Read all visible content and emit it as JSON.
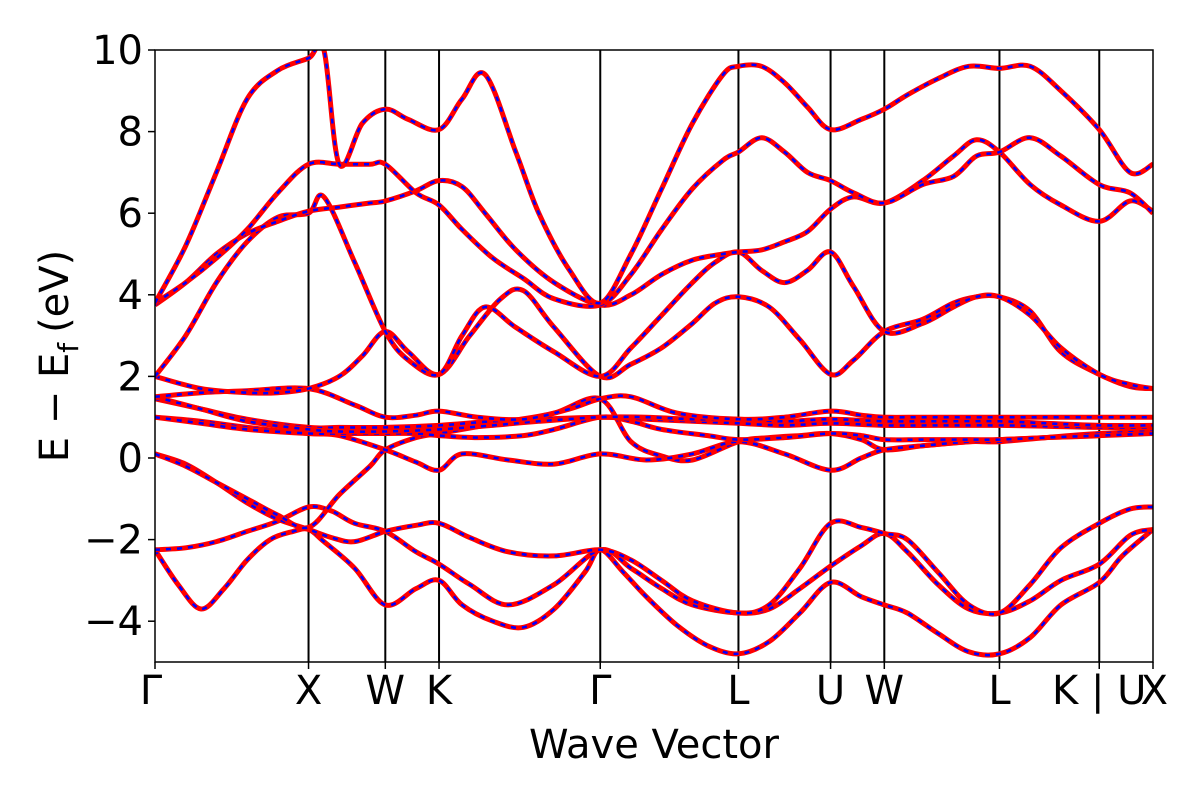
{
  "chart_data": {
    "type": "line",
    "xlabel": "Wave Vector",
    "ylabel": "E − E",
    "ylabel_sub": "f",
    "ylabel_unit": "(eV)",
    "ylim": [
      -5,
      10
    ],
    "yticks": [
      -4,
      -2,
      0,
      2,
      4,
      6,
      8,
      10
    ],
    "ytick_labels": [
      "−4",
      "−2",
      "0",
      "2",
      "4",
      "6",
      "8",
      "10"
    ],
    "xlim": [
      0,
      6.5
    ],
    "kpoints": [
      {
        "label": "Γ",
        "x": 0
      },
      {
        "label": "X",
        "x": 1.0
      },
      {
        "label": "W",
        "x": 1.5
      },
      {
        "label": "K",
        "x": 1.85
      },
      {
        "label": "Γ",
        "x": 2.9
      },
      {
        "label": "L",
        "x": 3.8
      },
      {
        "label": "U",
        "x": 4.4
      },
      {
        "label": "W",
        "x": 4.75
      },
      {
        "label": "L",
        "x": 5.5
      },
      {
        "label": "K | U",
        "x": 6.15
      },
      {
        "label": "X",
        "x": 6.5
      }
    ],
    "series_colors": {
      "series_a": "#ff0000",
      "series_b": "#0000ff"
    },
    "bands": [
      {
        "x": [
          0,
          0.15,
          0.3,
          0.45,
          0.6,
          0.75,
          0.9,
          1.0,
          1.1,
          1.3,
          1.5,
          1.7,
          1.85,
          2.0,
          2.2,
          2.4,
          2.6,
          2.8,
          2.9,
          3.05,
          3.2,
          3.4,
          3.6,
          3.8,
          4.0,
          4.2,
          4.4,
          4.6,
          4.75,
          4.9,
          5.1,
          5.3,
          5.5,
          5.7,
          5.9,
          6.15,
          6.3,
          6.5
        ],
        "y": [
          -2.25,
          -3.1,
          -3.7,
          -3.2,
          -2.5,
          -2.0,
          -1.8,
          -1.75,
          -2.05,
          -2.7,
          -3.6,
          -3.2,
          -3.0,
          -3.6,
          -4.0,
          -4.15,
          -3.7,
          -2.8,
          -2.25,
          -2.8,
          -3.4,
          -4.1,
          -4.6,
          -4.8,
          -4.5,
          -3.8,
          -3.05,
          -3.4,
          -3.6,
          -3.8,
          -4.3,
          -4.75,
          -4.8,
          -4.4,
          -3.6,
          -3.05,
          -2.4,
          -1.75
        ]
      },
      {
        "x": [
          0,
          0.2,
          0.4,
          0.6,
          0.8,
          1.0,
          1.15,
          1.3,
          1.5,
          1.7,
          1.85,
          2.05,
          2.3,
          2.6,
          2.9,
          3.1,
          3.3,
          3.5,
          3.8,
          4.0,
          4.2,
          4.4,
          4.6,
          4.75,
          4.9,
          5.1,
          5.3,
          5.5,
          5.7,
          5.9,
          6.15,
          6.35,
          6.5
        ],
        "y": [
          -2.25,
          -2.2,
          -2.05,
          -1.8,
          -1.55,
          -1.2,
          -1.3,
          -1.6,
          -1.8,
          -2.3,
          -2.6,
          -3.1,
          -3.6,
          -3.1,
          -2.25,
          -2.7,
          -3.2,
          -3.6,
          -3.8,
          -3.7,
          -3.2,
          -2.65,
          -2.15,
          -1.85,
          -2.3,
          -3.1,
          -3.7,
          -3.8,
          -3.5,
          -3.0,
          -2.6,
          -1.9,
          -1.75
        ]
      },
      {
        "x": [
          0,
          0.2,
          0.4,
          0.6,
          0.8,
          1.0,
          1.15,
          1.3,
          1.5,
          1.7,
          1.85,
          2.05,
          2.3,
          2.6,
          2.9,
          3.1,
          3.3,
          3.5,
          3.8,
          4.0,
          4.2,
          4.4,
          4.6,
          4.75,
          4.9,
          5.1,
          5.3,
          5.5,
          5.7,
          5.9,
          6.15,
          6.35,
          6.5
        ],
        "y": [
          0.1,
          -0.15,
          -0.6,
          -1.1,
          -1.5,
          -1.75,
          -1.95,
          -2.05,
          -1.8,
          -1.65,
          -1.6,
          -1.95,
          -2.3,
          -2.4,
          -2.25,
          -2.5,
          -3.0,
          -3.5,
          -3.8,
          -3.6,
          -2.7,
          -1.6,
          -1.7,
          -1.85,
          -2.0,
          -2.8,
          -3.6,
          -3.8,
          -3.1,
          -2.2,
          -1.6,
          -1.25,
          -1.2
        ]
      },
      {
        "x": [
          0,
          0.2,
          0.4,
          0.6,
          0.8,
          1.0,
          1.2,
          1.4,
          1.5,
          1.7,
          1.85,
          2.0,
          2.3,
          2.6,
          2.9,
          3.1,
          3.3,
          3.5,
          3.8,
          4.0,
          4.2,
          4.4,
          4.6,
          4.75,
          5.0,
          5.3,
          5.5,
          5.8,
          6.15,
          6.35,
          6.5
        ],
        "y": [
          0.1,
          -0.2,
          -0.6,
          -1.0,
          -1.4,
          -1.7,
          -0.9,
          -0.2,
          0.2,
          0.5,
          0.6,
          0.7,
          0.9,
          1.1,
          1.45,
          0.4,
          0.05,
          -0.05,
          0.4,
          0.5,
          0.55,
          0.6,
          0.45,
          0.2,
          0.3,
          0.4,
          0.45,
          0.5,
          0.55,
          0.65,
          0.7
        ]
      },
      {
        "x": [
          0,
          0.3,
          0.6,
          1.0,
          1.2,
          1.5,
          1.7,
          1.85,
          2.0,
          2.3,
          2.6,
          2.9,
          3.2,
          3.5,
          3.8,
          4.1,
          4.4,
          4.6,
          4.75,
          5.0,
          5.3,
          5.5,
          5.8,
          6.15,
          6.5
        ],
        "y": [
          1.0,
          0.9,
          0.75,
          0.6,
          0.55,
          0.2,
          -0.1,
          -0.3,
          0.1,
          -0.05,
          -0.15,
          0.1,
          -0.05,
          0.1,
          0.4,
          0.1,
          -0.3,
          0.0,
          0.2,
          0.3,
          0.4,
          0.4,
          0.5,
          0.6,
          0.65
        ]
      },
      {
        "x": [
          0,
          0.3,
          0.6,
          1.0,
          1.2,
          1.5,
          1.7,
          1.85,
          2.1,
          2.4,
          2.6,
          2.9,
          3.1,
          3.3,
          3.6,
          3.8,
          4.1,
          4.4,
          4.6,
          4.75,
          5.0,
          5.3,
          5.5,
          5.8,
          6.15,
          6.5
        ],
        "y": [
          1.0,
          0.85,
          0.7,
          0.6,
          0.6,
          0.6,
          0.6,
          0.55,
          0.5,
          0.55,
          0.7,
          1.0,
          0.9,
          0.7,
          0.55,
          0.45,
          0.5,
          0.6,
          0.55,
          0.45,
          0.45,
          0.45,
          0.45,
          0.5,
          0.55,
          0.6
        ]
      },
      {
        "x": [
          0,
          0.3,
          0.6,
          1.0,
          1.2,
          1.5,
          1.85,
          2.2,
          2.5,
          2.9,
          3.2,
          3.5,
          3.8,
          4.1,
          4.4,
          4.75,
          5.1,
          5.5,
          5.8,
          6.15,
          6.5
        ],
        "y": [
          1.45,
          1.2,
          0.95,
          0.75,
          0.75,
          0.75,
          0.8,
          0.9,
          0.95,
          1.0,
          0.95,
          0.9,
          0.85,
          0.8,
          0.85,
          0.8,
          0.8,
          0.8,
          0.78,
          0.75,
          0.75
        ]
      },
      {
        "x": [
          0,
          0.3,
          0.6,
          1.0,
          1.2,
          1.5,
          1.85,
          2.2,
          2.5,
          2.9,
          3.2,
          3.5,
          3.8,
          4.1,
          4.4,
          4.75,
          5.1,
          5.5,
          5.8,
          6.15,
          6.5
        ],
        "y": [
          1.5,
          1.2,
          0.9,
          0.7,
          0.65,
          0.65,
          0.7,
          0.8,
          0.9,
          1.0,
          1.0,
          0.95,
          0.95,
          0.9,
          0.95,
          0.9,
          0.9,
          0.9,
          0.85,
          0.8,
          0.8
        ]
      },
      {
        "x": [
          0,
          0.3,
          0.6,
          1.0,
          1.3,
          1.5,
          1.7,
          1.85,
          2.1,
          2.4,
          2.7,
          2.9,
          3.1,
          3.4,
          3.8,
          4.1,
          4.4,
          4.6,
          4.75,
          5.0,
          5.3,
          5.5,
          5.8,
          6.15,
          6.5
        ],
        "y": [
          1.5,
          1.6,
          1.65,
          1.7,
          1.3,
          1.0,
          1.05,
          1.15,
          1.0,
          0.95,
          1.2,
          1.45,
          1.5,
          1.1,
          0.95,
          1.0,
          1.15,
          1.05,
          1.0,
          1.0,
          1.0,
          1.0,
          1.0,
          1.0,
          1.0
        ]
      },
      {
        "x": [
          0,
          0.3,
          0.6,
          0.8,
          1.0,
          1.2,
          1.35,
          1.5,
          1.65,
          1.85,
          2.05,
          2.25,
          2.4,
          2.6,
          2.9,
          3.1,
          3.3,
          3.5,
          3.65,
          3.8,
          4.0,
          4.2,
          4.4,
          4.55,
          4.75,
          5.0,
          5.2,
          5.35,
          5.5,
          5.7,
          5.9,
          6.15,
          6.35,
          6.5
        ],
        "y": [
          2.0,
          1.7,
          1.6,
          1.6,
          1.7,
          2.0,
          2.5,
          3.1,
          2.6,
          2.05,
          3.0,
          3.9,
          4.1,
          3.2,
          2.0,
          2.3,
          2.7,
          3.3,
          3.8,
          3.95,
          3.7,
          2.9,
          2.05,
          2.4,
          3.1,
          3.4,
          3.8,
          3.95,
          3.95,
          3.6,
          2.6,
          2.05,
          1.75,
          1.7
        ]
      },
      {
        "x": [
          0,
          0.2,
          0.4,
          0.6,
          0.8,
          1.0,
          1.1,
          1.3,
          1.5,
          1.65,
          1.85,
          2.0,
          2.15,
          2.35,
          2.6,
          2.9,
          3.1,
          3.3,
          3.5,
          3.65,
          3.8,
          3.95,
          4.1,
          4.25,
          4.4,
          4.55,
          4.75,
          5.0,
          5.2,
          5.35,
          5.5,
          5.7,
          5.9,
          6.15,
          6.35,
          6.5
        ],
        "y": [
          2.0,
          3.0,
          4.3,
          5.3,
          5.9,
          6.0,
          6.4,
          4.8,
          3.1,
          2.4,
          2.05,
          3.0,
          3.7,
          3.2,
          2.6,
          2.0,
          2.7,
          3.5,
          4.3,
          4.8,
          5.05,
          4.6,
          4.3,
          4.6,
          5.05,
          4.2,
          3.1,
          3.3,
          3.7,
          3.95,
          3.95,
          3.5,
          2.7,
          2.05,
          1.8,
          1.7
        ]
      },
      {
        "x": [
          0,
          0.2,
          0.4,
          0.6,
          0.8,
          1.0,
          1.2,
          1.4,
          1.5,
          1.7,
          1.85,
          2.0,
          2.15,
          2.35,
          2.6,
          2.9,
          3.1,
          3.3,
          3.5,
          3.7,
          3.8,
          3.95,
          4.1,
          4.25,
          4.4,
          4.55,
          4.75,
          5.0,
          5.2,
          5.35,
          5.5,
          5.7,
          5.9,
          6.15,
          6.35,
          6.5
        ],
        "y": [
          3.75,
          4.3,
          5.0,
          5.5,
          5.8,
          6.05,
          6.15,
          6.25,
          6.3,
          6.55,
          6.8,
          6.65,
          6.0,
          5.1,
          4.3,
          3.75,
          4.0,
          4.5,
          4.85,
          5.0,
          5.05,
          5.1,
          5.3,
          5.55,
          6.1,
          6.4,
          6.25,
          6.8,
          7.4,
          7.8,
          7.5,
          6.7,
          6.2,
          5.8,
          6.3,
          6.05
        ]
      },
      {
        "x": [
          0,
          0.2,
          0.4,
          0.6,
          0.8,
          1.0,
          1.2,
          1.4,
          1.5,
          1.7,
          1.85,
          2.0,
          2.2,
          2.4,
          2.6,
          2.9,
          3.1,
          3.3,
          3.5,
          3.7,
          3.8,
          3.95,
          4.1,
          4.25,
          4.4,
          4.55,
          4.75,
          5.0,
          5.2,
          5.35,
          5.5,
          5.7,
          5.9,
          6.15,
          6.35,
          6.5
        ],
        "y": [
          3.8,
          4.3,
          4.9,
          5.6,
          6.5,
          7.2,
          7.2,
          7.2,
          7.2,
          6.5,
          6.2,
          5.6,
          4.9,
          4.4,
          3.9,
          3.75,
          4.5,
          5.6,
          6.6,
          7.3,
          7.5,
          7.85,
          7.5,
          7.0,
          6.8,
          6.5,
          6.25,
          6.7,
          6.9,
          7.4,
          7.5,
          7.85,
          7.4,
          6.7,
          6.5,
          6.0
        ]
      },
      {
        "x": [
          0,
          0.2,
          0.4,
          0.6,
          0.8,
          1.0,
          1.1,
          1.2,
          1.35,
          1.5,
          1.65,
          1.85,
          2.0,
          2.15,
          2.35,
          2.5,
          2.7,
          2.9,
          3.1,
          3.3,
          3.5,
          3.7,
          3.8,
          3.95,
          4.1,
          4.25,
          4.4,
          4.6,
          4.75,
          4.9,
          5.1,
          5.3,
          5.5,
          5.7,
          5.9,
          6.15,
          6.35,
          6.5
        ],
        "y": [
          3.8,
          5.2,
          7.0,
          8.8,
          9.5,
          9.8,
          10.0,
          7.2,
          8.2,
          8.55,
          8.3,
          8.05,
          8.8,
          9.4,
          7.5,
          6.0,
          4.6,
          3.8,
          5.0,
          6.6,
          8.2,
          9.4,
          9.6,
          9.6,
          9.2,
          8.6,
          8.05,
          8.3,
          8.55,
          8.9,
          9.3,
          9.6,
          9.55,
          9.6,
          9.0,
          8.05,
          7.0,
          7.2
        ]
      }
    ]
  }
}
